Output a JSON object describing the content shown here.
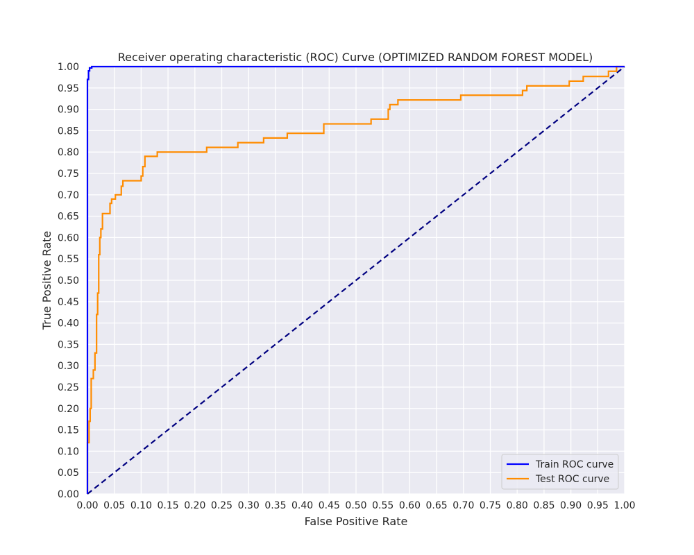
{
  "chart_data": {
    "type": "line",
    "title": "Receiver operating characteristic (ROC) Curve (OPTIMIZED RANDOM FOREST MODEL)",
    "xlabel": "False Positive Rate",
    "ylabel": "True Positive Rate",
    "xlim": [
      0,
      1
    ],
    "ylim": [
      0,
      1
    ],
    "xticks": [
      "0.00",
      "0.05",
      "0.10",
      "0.15",
      "0.20",
      "0.25",
      "0.30",
      "0.35",
      "0.40",
      "0.45",
      "0.50",
      "0.55",
      "0.60",
      "0.65",
      "0.70",
      "0.75",
      "0.80",
      "0.85",
      "0.90",
      "0.95",
      "1.00"
    ],
    "yticks": [
      "0.00",
      "0.05",
      "0.10",
      "0.15",
      "0.20",
      "0.25",
      "0.30",
      "0.35",
      "0.40",
      "0.45",
      "0.50",
      "0.55",
      "0.60",
      "0.65",
      "0.70",
      "0.75",
      "0.80",
      "0.85",
      "0.90",
      "0.95",
      "1.00"
    ],
    "grid": true,
    "legend_position": "bottom-right",
    "series": [
      {
        "name": "Train ROC curve",
        "color": "#0000ff",
        "x": [
          0,
          0,
          0.002,
          0.002,
          0.004,
          0.004,
          0.008,
          0.008,
          1.0
        ],
        "y": [
          0,
          0.97,
          0.97,
          0.99,
          0.99,
          0.997,
          0.997,
          1.0,
          1.0
        ]
      },
      {
        "name": "Test ROC curve",
        "color": "#ff8c00",
        "x": [
          0,
          0,
          0.003,
          0.003,
          0.005,
          0.005,
          0.007,
          0.007,
          0.011,
          0.011,
          0.014,
          0.014,
          0.017,
          0.017,
          0.019,
          0.019,
          0.021,
          0.021,
          0.023,
          0.023,
          0.025,
          0.025,
          0.028,
          0.028,
          0.042,
          0.042,
          0.045,
          0.045,
          0.052,
          0.052,
          0.063,
          0.063,
          0.066,
          0.066,
          0.1,
          0.1,
          0.103,
          0.103,
          0.107,
          0.107,
          0.13,
          0.13,
          0.222,
          0.222,
          0.28,
          0.28,
          0.328,
          0.328,
          0.372,
          0.372,
          0.44,
          0.44,
          0.528,
          0.528,
          0.56,
          0.56,
          0.563,
          0.563,
          0.578,
          0.578,
          0.695,
          0.695,
          0.81,
          0.81,
          0.818,
          0.818,
          0.897,
          0.897,
          0.923,
          0.923,
          0.97,
          0.97,
          0.985,
          0.985,
          1.0
        ],
        "y": [
          0,
          0.12,
          0.12,
          0.17,
          0.17,
          0.2,
          0.2,
          0.27,
          0.27,
          0.29,
          0.29,
          0.33,
          0.33,
          0.42,
          0.42,
          0.47,
          0.47,
          0.56,
          0.56,
          0.6,
          0.6,
          0.62,
          0.62,
          0.656,
          0.656,
          0.68,
          0.68,
          0.69,
          0.69,
          0.7,
          0.7,
          0.72,
          0.72,
          0.733,
          0.733,
          0.744,
          0.744,
          0.766,
          0.766,
          0.79,
          0.79,
          0.8,
          0.8,
          0.811,
          0.811,
          0.822,
          0.822,
          0.833,
          0.833,
          0.844,
          0.844,
          0.866,
          0.866,
          0.877,
          0.877,
          0.9,
          0.9,
          0.911,
          0.911,
          0.922,
          0.922,
          0.933,
          0.933,
          0.944,
          0.944,
          0.955,
          0.955,
          0.966,
          0.966,
          0.977,
          0.977,
          0.989,
          0.989,
          1.0,
          1.0
        ]
      },
      {
        "name": "",
        "color": "#000080",
        "dashed": true,
        "x": [
          0,
          1
        ],
        "y": [
          0,
          1
        ]
      }
    ]
  }
}
